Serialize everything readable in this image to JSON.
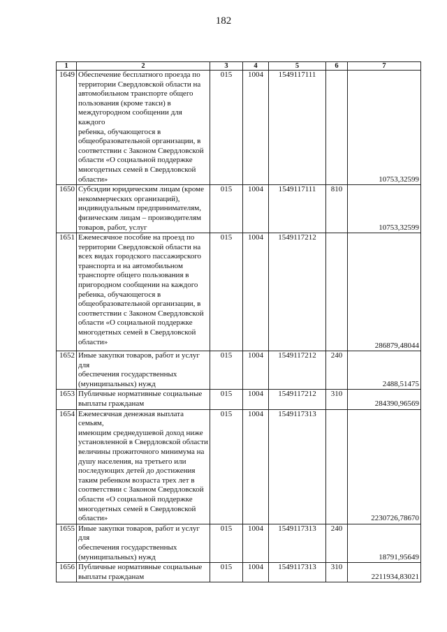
{
  "page_number": "182",
  "columns": [
    "1",
    "2",
    "3",
    "4",
    "5",
    "6",
    "7"
  ],
  "rows": [
    {
      "num": "1649",
      "desc": "Обеспечение бесплатного проезда по\nтерритории Свердловской области на\nавтомобильном транспорте общего\nпользования (кроме такси) в\nмеждугородном сообщении для каждого\nребенка, обучающегося в\nобщеобразовательной организации, в\nсоответствии с Законом Свердловской\nобласти «О социальной поддержке\nмногодетных семей в Свердловской\nобласти»",
      "c3": "015",
      "c4": "1004",
      "c5": "1549117111",
      "c6": "",
      "c7": "10753,32599"
    },
    {
      "num": "1650",
      "desc": "Субсидии юридическим лицам (кроме\nнекоммерческих организаций),\nиндивидуальным предпринимателям,\nфизическим лицам – производителям\nтоваров, работ, услуг",
      "c3": "015",
      "c4": "1004",
      "c5": "1549117111",
      "c6": "810",
      "c7": "10753,32599"
    },
    {
      "num": "1651",
      "desc": "Ежемесячное пособие на проезд по\nтерритории Свердловской области на\nвсех видах городского пассажирского\nтранспорта и на автомобильном\nтранспорте общего пользования в\nпригородном сообщении на каждого\nребенка, обучающегося в\nобщеобразовательной организации, в\nсоответствии с Законом Свердловской\nобласти «О социальной поддержке\nмногодетных семей в Свердловской\nобласти»",
      "c3": "015",
      "c4": "1004",
      "c5": "1549117212",
      "c6": "",
      "c7": "286879,48044"
    },
    {
      "num": "1652",
      "desc": "Иные закупки товаров, работ и услуг для\nобеспечения государственных\n(муниципальных) нужд",
      "c3": "015",
      "c4": "1004",
      "c5": "1549117212",
      "c6": "240",
      "c7": "2488,51475"
    },
    {
      "num": "1653",
      "desc": "Публичные нормативные социальные\nвыплаты гражданам",
      "c3": "015",
      "c4": "1004",
      "c5": "1549117212",
      "c6": "310",
      "c7": "284390,96569"
    },
    {
      "num": "1654",
      "desc": "Ежемесячная денежная выплата семьям,\nимеющим среднедушевой доход ниже\nустановленной в Свердловской области\nвеличины прожиточного минимума на\nдушу населения, на третьего или\nпоследующих детей до достижения\nтаким ребенком возраста трех лет в\nсоответствии с Законом Свердловской\nобласти «О социальной поддержке\nмногодетных семей в Свердловской\nобласти»",
      "c3": "015",
      "c4": "1004",
      "c5": "1549117313",
      "c6": "",
      "c7": "2230726,78670"
    },
    {
      "num": "1655",
      "desc": "Иные закупки товаров, работ и услуг для\nобеспечения государственных\n(муниципальных) нужд",
      "c3": "015",
      "c4": "1004",
      "c5": "1549117313",
      "c6": "240",
      "c7": "18791,95649"
    },
    {
      "num": "1656",
      "desc": "Публичные нормативные социальные\nвыплаты гражданам",
      "c3": "015",
      "c4": "1004",
      "c5": "1549117313",
      "c6": "310",
      "c7": "2211934,83021"
    }
  ]
}
